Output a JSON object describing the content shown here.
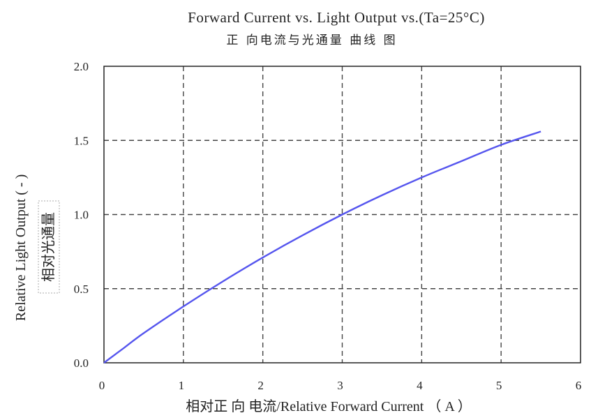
{
  "chart_data": {
    "type": "line",
    "title": "Forward Current vs. Light Output vs.(Ta=25°C)",
    "subtitle": "正 向电流与光通量 曲线 图",
    "xlabel": "相对正 向 电流/Relative Forward Current （ A ）",
    "ylabel": "Relative Light Output ( - )",
    "ylabel_cn": "相对光通量",
    "xlim": [
      0,
      6
    ],
    "ylim": [
      0,
      2.0
    ],
    "x_ticks": [
      "0",
      "1",
      "2",
      "3",
      "4",
      "5",
      "6"
    ],
    "y_ticks": [
      "0.0",
      "0.5",
      "1.0",
      "1.5",
      "2.0"
    ],
    "grid": true,
    "series": [
      {
        "color": "#5555ee",
        "x": [
          0,
          0.25,
          0.5,
          1.0,
          1.5,
          2.0,
          2.5,
          3.0,
          3.5,
          4.0,
          4.5,
          5.0,
          5.5
        ],
        "y": [
          0,
          0.1,
          0.2,
          0.38,
          0.55,
          0.71,
          0.86,
          1.0,
          1.13,
          1.25,
          1.36,
          1.47,
          1.56
        ]
      }
    ]
  }
}
